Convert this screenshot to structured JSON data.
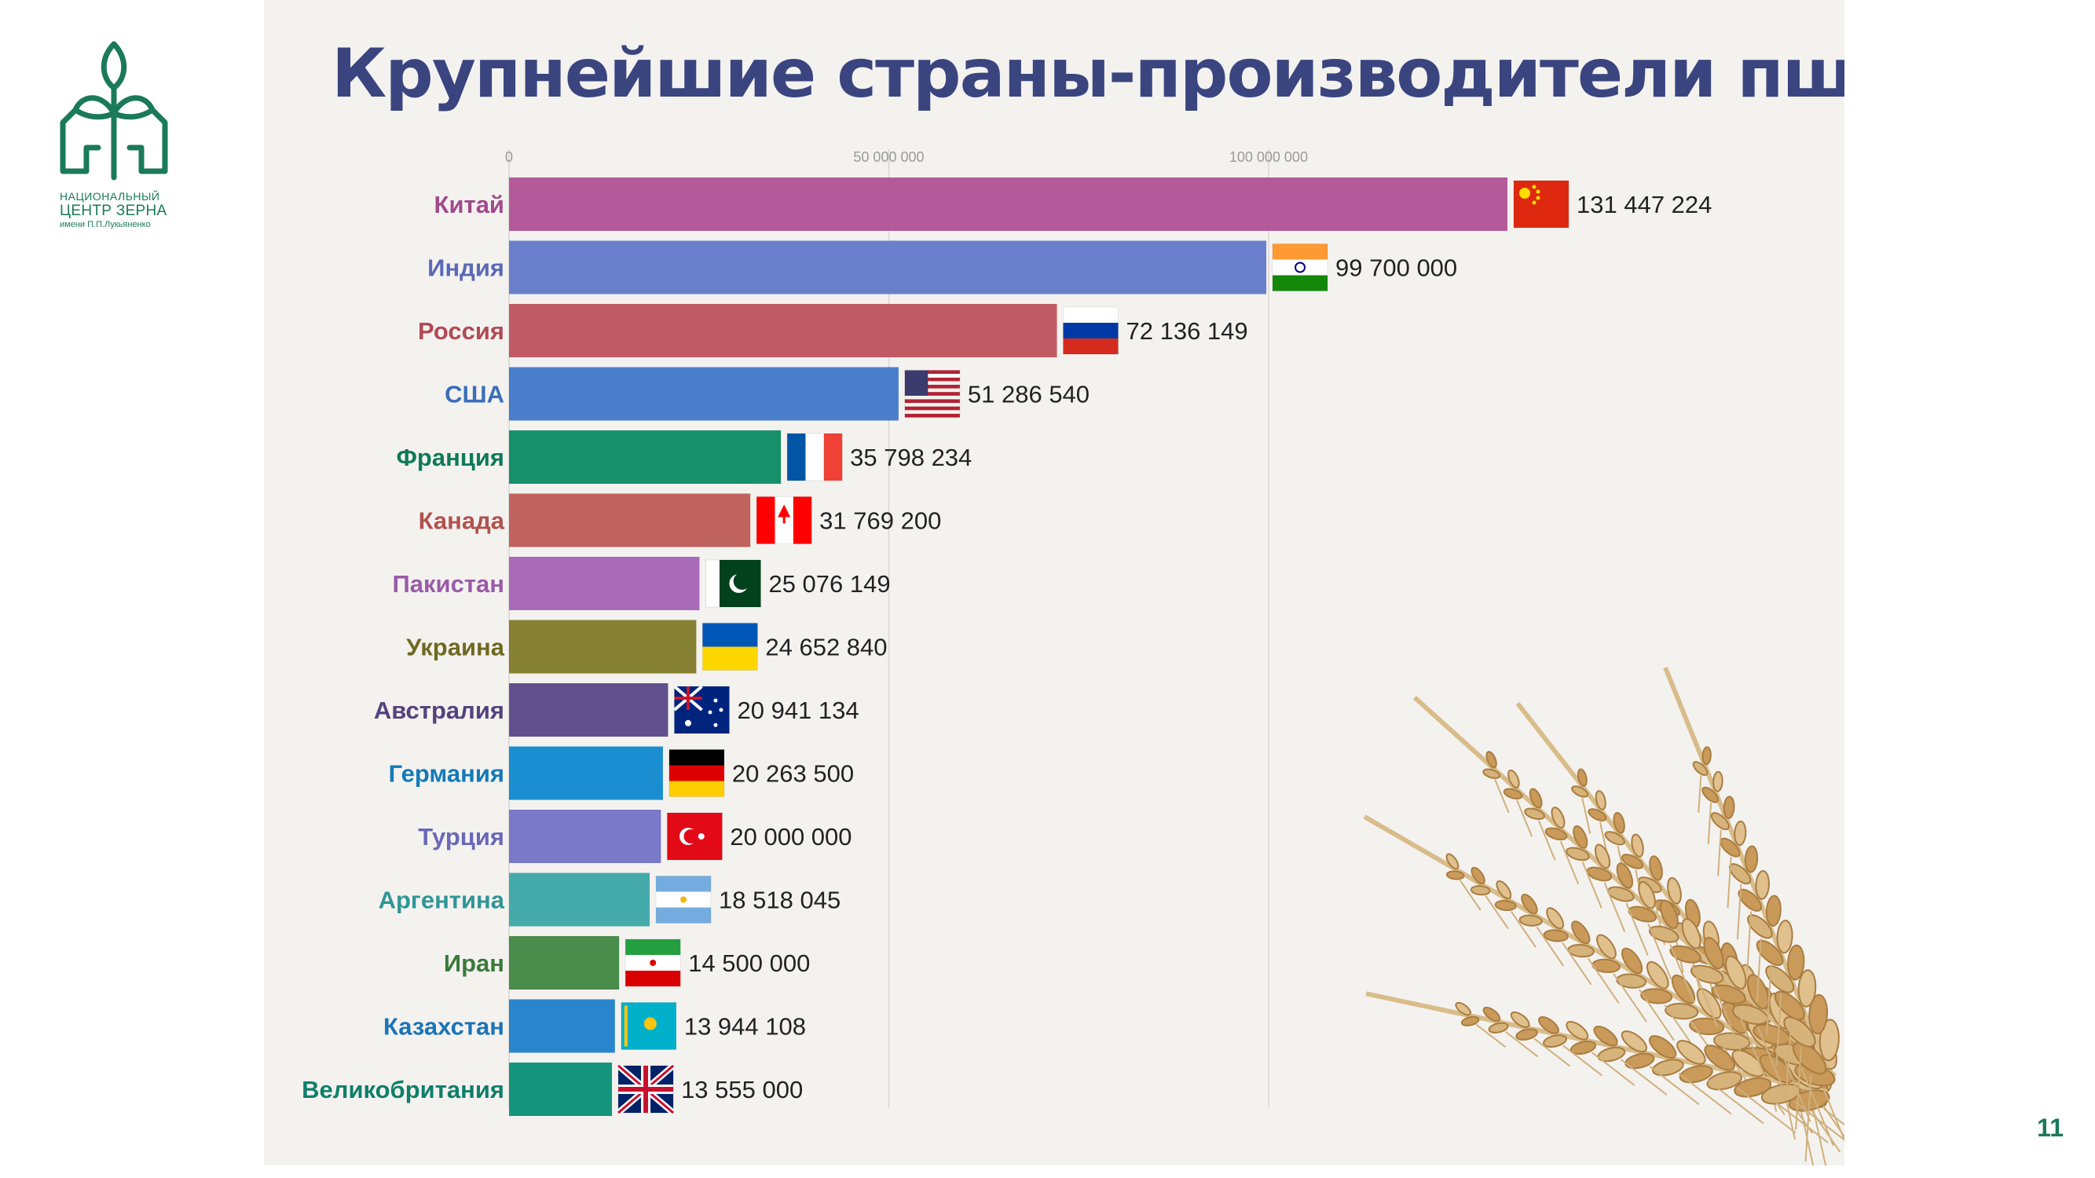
{
  "logo": {
    "line1": "НАЦИОНАЛЬНЫЙ",
    "line2": "ЦЕНТР ЗЕРНА",
    "line3": "имени П.П.Лукьяненко",
    "color": "#1a7a5a"
  },
  "page_number": "11",
  "chart_data": {
    "type": "bar",
    "orientation": "horizontal",
    "title": "Крупнейшие страны-производители пшеницы",
    "xlabel": "",
    "ylabel": "",
    "xlim": [
      0,
      131447224
    ],
    "grid": true,
    "tick_labels": [
      "0",
      "50 000 000",
      "100 000 000"
    ],
    "ticks": [
      0,
      50000000,
      100000000
    ],
    "categories": [
      "Китай",
      "Индия",
      "Россия",
      "США",
      "Франция",
      "Канада",
      "Пакистан",
      "Украина",
      "Австралия",
      "Германия",
      "Турция",
      "Аргентина",
      "Иран",
      "Казахстан",
      "Великобритания"
    ],
    "values": [
      131447224,
      99700000,
      72136149,
      51286540,
      35798234,
      31769200,
      25076149,
      24652840,
      20941134,
      20263500,
      20000000,
      18518045,
      14500000,
      13944108,
      13555000
    ],
    "value_labels": [
      "131 447 224",
      "99 700 000",
      "72 136 149",
      "51 286 540",
      "35 798 234",
      "31 769 200",
      "25 076 149",
      "24 652 840",
      "20 941 134",
      "20 263 500",
      "20 000 000",
      "18 518 045",
      "14 500 000",
      "13 944 108",
      "13 555 000"
    ],
    "flags": [
      "china-flag",
      "india-flag",
      "russia-flag",
      "usa-flag",
      "france-flag",
      "canada-flag",
      "pakistan-flag",
      "ukraine-flag",
      "australia-flag",
      "germany-flag",
      "turkey-flag",
      "argentina-flag",
      "iran-flag",
      "kazakhstan-flag",
      "uk-flag"
    ],
    "bar_colors": [
      "#b45a9a",
      "#6a7fcc",
      "#c05a64",
      "#4a7ecc",
      "#16906a",
      "#c0625e",
      "#a96ab8",
      "#868032",
      "#62508e",
      "#1a8ed0",
      "#7a78c8",
      "#44aaaa",
      "#4a8c4c",
      "#2a86cc",
      "#16957e"
    ],
    "label_colors": [
      "#a04a8c",
      "#5a6ab8",
      "#b04a54",
      "#3a6eba",
      "#0f7a5a",
      "#b0524e",
      "#9a5aa8",
      "#6e6a20",
      "#54427e",
      "#127ab8",
      "#6a68b8",
      "#2e9696",
      "#3a7a3c",
      "#1a74b8",
      "#0f7f6a"
    ],
    "decoration": "wheat-ears-image"
  }
}
